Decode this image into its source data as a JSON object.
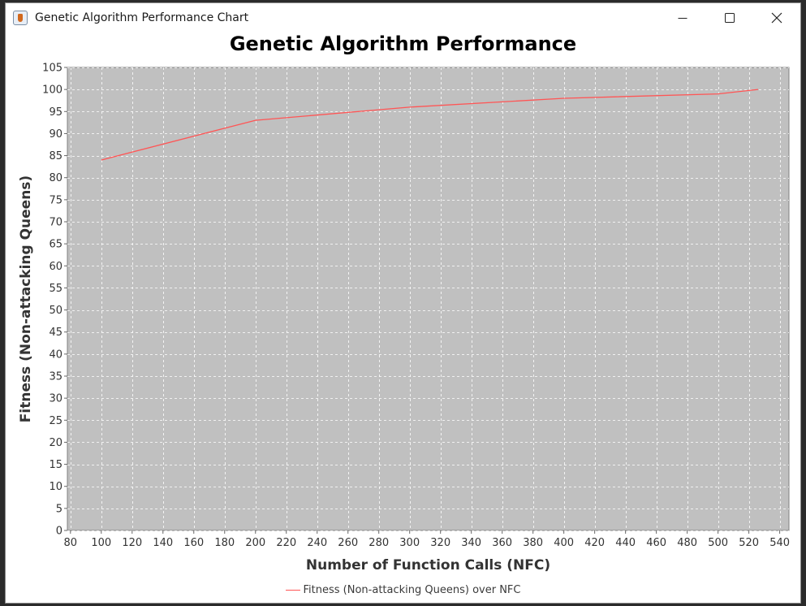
{
  "window": {
    "title": "Genetic Algorithm Performance Chart"
  },
  "chart_data": {
    "type": "line",
    "title": "Genetic Algorithm Performance",
    "xlabel": "Number of Function Calls (NFC)",
    "ylabel": "Fitness (Non-attacking Queens)",
    "xlim": [
      78,
      546
    ],
    "ylim": [
      0,
      105
    ],
    "x_ticks": [
      80,
      100,
      120,
      140,
      160,
      180,
      200,
      220,
      240,
      260,
      280,
      300,
      320,
      340,
      360,
      380,
      400,
      420,
      440,
      460,
      480,
      500,
      520,
      540
    ],
    "y_ticks": [
      0,
      5,
      10,
      15,
      20,
      25,
      30,
      35,
      40,
      45,
      50,
      55,
      60,
      65,
      70,
      75,
      80,
      85,
      90,
      95,
      100,
      105
    ],
    "grid": true,
    "legend_position": "bottom",
    "plot_background": "#c0c0c0",
    "series": [
      {
        "name": "Fitness (Non-attacking Queens) over NFC",
        "color": "#ff5555",
        "x": [
          100,
          200,
          300,
          400,
          500,
          526
        ],
        "y": [
          84,
          93,
          96,
          98,
          99,
          100
        ]
      }
    ]
  }
}
